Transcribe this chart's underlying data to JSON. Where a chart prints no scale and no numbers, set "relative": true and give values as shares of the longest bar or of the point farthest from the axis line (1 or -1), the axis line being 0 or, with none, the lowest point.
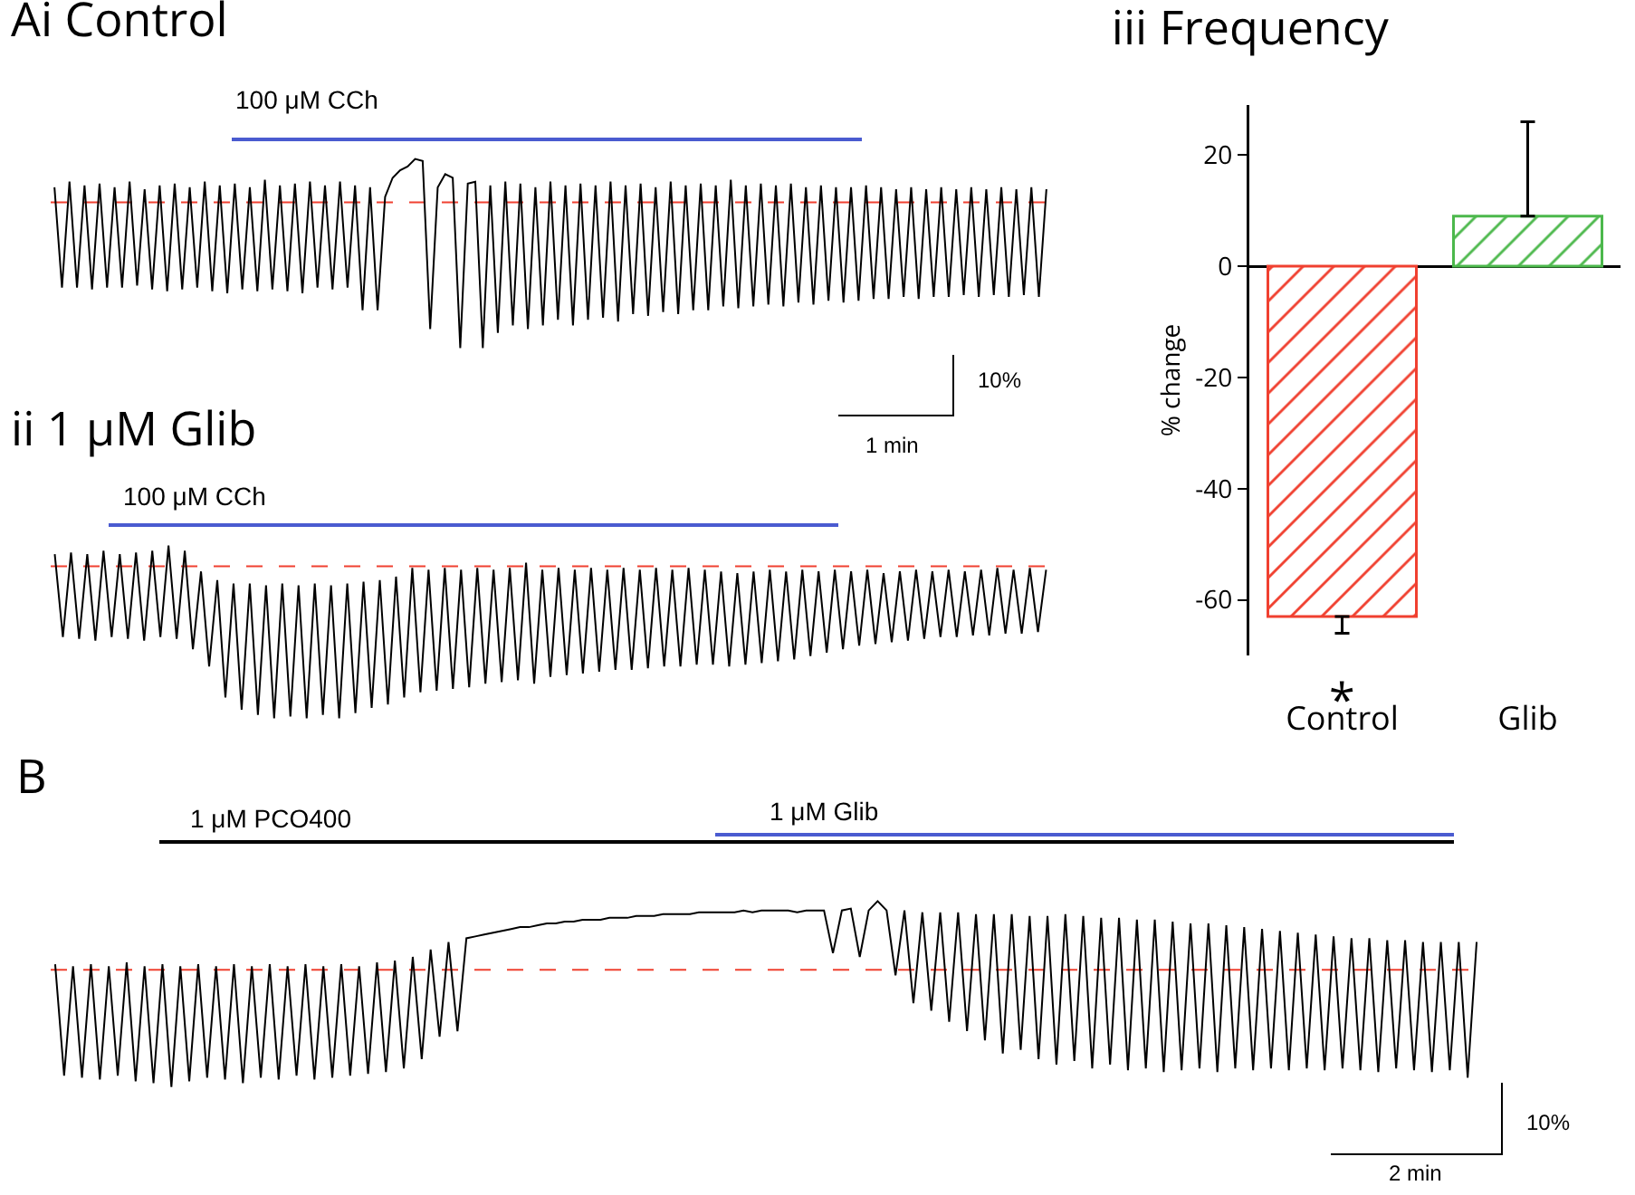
{
  "chart_data": [
    {
      "type": "line",
      "title": "Ai Control",
      "relative": true,
      "categories": [
        null,
        null,
        null,
        null,
        null,
        null,
        null,
        null,
        null,
        null,
        null,
        null,
        null,
        null,
        null,
        null,
        null,
        null,
        null,
        null,
        null,
        null,
        null,
        null,
        null,
        null,
        null,
        null,
        null,
        null,
        null,
        null,
        null,
        null,
        null,
        null,
        null,
        null,
        null,
        null,
        null,
        null,
        null,
        null,
        null,
        null,
        null,
        null,
        null,
        null,
        null,
        null,
        null,
        null,
        null,
        null,
        null,
        null,
        null,
        null,
        null,
        null,
        null,
        null,
        null,
        null,
        null,
        null,
        null,
        null,
        null,
        null,
        null,
        null,
        null,
        null,
        null,
        null,
        null,
        null,
        null,
        null,
        null,
        null,
        null,
        null,
        null,
        null,
        null,
        null,
        null,
        null,
        null,
        null,
        null,
        null,
        null,
        null,
        null,
        null,
        null,
        null,
        null,
        null,
        null,
        null,
        null,
        null,
        null,
        null,
        null,
        null,
        null,
        null,
        null,
        null,
        null,
        null,
        null,
        null,
        null,
        null,
        null,
        null,
        null,
        null,
        null,
        null,
        null,
        null,
        null,
        null,
        null
      ],
      "series": [
        {
          "color": "#000000",
          "values": [
            0.85,
            0.32,
            0.88,
            0.32,
            0.86,
            0.31,
            0.87,
            0.32,
            0.85,
            0.32,
            0.88,
            0.33,
            0.84,
            0.31,
            0.86,
            0.3,
            0.87,
            0.31,
            0.85,
            0.32,
            0.88,
            0.3,
            0.86,
            0.29,
            0.87,
            0.31,
            0.85,
            0.3,
            0.89,
            0.31,
            0.86,
            0.3,
            0.87,
            0.29,
            0.88,
            0.32,
            0.86,
            0.31,
            0.88,
            0.32,
            0.86,
            0.2,
            0.85,
            0.2,
            0.8,
            0.9,
            0.94,
            0.96,
            1.0,
            0.99,
            0.1,
            0.85,
            0.92,
            0.9,
            0.0,
            0.87,
            0.88,
            0.0,
            0.86,
            0.08,
            0.88,
            0.12,
            0.87,
            0.1,
            0.85,
            0.12,
            0.88,
            0.15,
            0.86,
            0.12,
            0.87,
            0.15,
            0.86,
            0.16,
            0.88,
            0.14,
            0.86,
            0.18,
            0.87,
            0.17,
            0.85,
            0.19,
            0.88,
            0.18,
            0.86,
            0.2,
            0.87,
            0.2,
            0.86,
            0.22,
            0.89,
            0.21,
            0.86,
            0.22,
            0.87,
            0.23,
            0.86,
            0.22,
            0.87,
            0.24,
            0.85,
            0.23,
            0.86,
            0.25,
            0.85,
            0.24,
            0.85,
            0.25,
            0.86,
            0.26,
            0.85,
            0.26,
            0.84,
            0.27,
            0.85,
            0.26,
            0.84,
            0.27,
            0.85,
            0.27,
            0.84,
            0.28,
            0.85,
            0.27,
            0.84,
            0.28,
            0.85,
            0.27,
            0.84,
            0.28,
            0.85,
            0.27,
            0.84
          ]
        }
      ],
      "ref_lines": [
        {
          "axis": "y",
          "value": 0.77,
          "color": "#f04030",
          "line_style": "dashed"
        }
      ],
      "annotations": [
        "100 μM CCh",
        "10%",
        "1 min"
      ]
    },
    {
      "type": "line",
      "title": "ii 1 μM Glib",
      "relative": true,
      "categories": [
        null,
        null,
        null,
        null,
        null,
        null,
        null,
        null,
        null,
        null,
        null,
        null,
        null,
        null,
        null,
        null,
        null,
        null,
        null,
        null,
        null,
        null,
        null,
        null,
        null,
        null,
        null,
        null,
        null,
        null,
        null,
        null,
        null,
        null,
        null,
        null,
        null,
        null,
        null,
        null,
        null,
        null,
        null,
        null,
        null,
        null,
        null,
        null,
        null,
        null,
        null,
        null,
        null,
        null,
        null,
        null,
        null,
        null,
        null,
        null,
        null,
        null,
        null,
        null,
        null,
        null,
        null,
        null,
        null,
        null,
        null,
        null,
        null,
        null,
        null,
        null,
        null,
        null,
        null,
        null,
        null,
        null,
        null,
        null,
        null,
        null,
        null,
        null,
        null,
        null,
        null,
        null,
        null,
        null,
        null,
        null,
        null,
        null,
        null,
        null,
        null,
        null,
        null,
        null,
        null,
        null,
        null,
        null,
        null,
        null,
        null,
        null,
        null,
        null,
        null,
        null,
        null,
        null,
        null,
        null,
        null,
        null,
        null
      ],
      "series": [
        {
          "color": "#000000",
          "values": [
            0.95,
            0.47,
            0.96,
            0.46,
            0.95,
            0.45,
            0.97,
            0.47,
            0.95,
            0.46,
            0.96,
            0.45,
            0.97,
            0.47,
            1.0,
            0.46,
            0.97,
            0.4,
            0.85,
            0.3,
            0.8,
            0.12,
            0.78,
            0.05,
            0.78,
            0.02,
            0.77,
            0.0,
            0.78,
            0.01,
            0.77,
            0.0,
            0.78,
            0.02,
            0.77,
            0.0,
            0.78,
            0.03,
            0.79,
            0.06,
            0.8,
            0.08,
            0.82,
            0.12,
            0.87,
            0.15,
            0.86,
            0.16,
            0.87,
            0.17,
            0.86,
            0.18,
            0.87,
            0.2,
            0.86,
            0.21,
            0.87,
            0.22,
            0.9,
            0.2,
            0.86,
            0.24,
            0.87,
            0.25,
            0.86,
            0.26,
            0.87,
            0.27,
            0.86,
            0.28,
            0.87,
            0.28,
            0.86,
            0.29,
            0.87,
            0.3,
            0.86,
            0.3,
            0.87,
            0.31,
            0.86,
            0.31,
            0.85,
            0.3,
            0.84,
            0.31,
            0.85,
            0.32,
            0.86,
            0.33,
            0.85,
            0.34,
            0.86,
            0.36,
            0.85,
            0.38,
            0.86,
            0.4,
            0.85,
            0.42,
            0.86,
            0.43,
            0.84,
            0.44,
            0.85,
            0.45,
            0.86,
            0.46,
            0.85,
            0.47,
            0.86,
            0.47,
            0.85,
            0.48,
            0.86,
            0.48,
            0.87,
            0.49,
            0.86,
            0.49,
            0.87,
            0.5,
            0.86
          ]
        }
      ],
      "ref_lines": [
        {
          "axis": "y",
          "value": 0.88,
          "color": "#f04030",
          "line_style": "dashed"
        }
      ],
      "annotations": [
        "100 μM CCh"
      ]
    },
    {
      "type": "bar",
      "title": "iii Frequency",
      "ylabel": "% change",
      "categories": [
        "Control",
        "Glib"
      ],
      "values": [
        -63,
        9
      ],
      "colors": [
        "#f04030",
        "#4cb84c"
      ],
      "errors": [
        [
          -66,
          -63
        ],
        [
          9,
          26
        ]
      ],
      "ylim": [
        -70,
        29
      ],
      "yticks": [
        20,
        0,
        -20,
        -40,
        -60
      ],
      "annotations": [
        "*"
      ]
    },
    {
      "type": "line",
      "title": "B",
      "relative": true,
      "categories": [
        null,
        null,
        null,
        null,
        null,
        null,
        null,
        null,
        null,
        null,
        null,
        null,
        null,
        null,
        null,
        null,
        null,
        null,
        null,
        null,
        null,
        null,
        null,
        null,
        null,
        null,
        null,
        null,
        null,
        null,
        null,
        null,
        null,
        null,
        null,
        null,
        null,
        null,
        null,
        null,
        null,
        null,
        null,
        null,
        null,
        null,
        null,
        null,
        null,
        null,
        null,
        null,
        null,
        null,
        null,
        null,
        null,
        null,
        null,
        null,
        null,
        null,
        null,
        null,
        null,
        null,
        null,
        null,
        null,
        null,
        null,
        null,
        null,
        null,
        null,
        null,
        null,
        null,
        null,
        null,
        null,
        null,
        null,
        null,
        null,
        null,
        null,
        null,
        null,
        null,
        null,
        null,
        null,
        null,
        null,
        null,
        null,
        null,
        null,
        null,
        null,
        null,
        null,
        null,
        null,
        null,
        null,
        null,
        null,
        null,
        null,
        null,
        null,
        null,
        null,
        null,
        null,
        null,
        null,
        null,
        null,
        null,
        null,
        null,
        null,
        null,
        null,
        null,
        null,
        null,
        null,
        null,
        null,
        null,
        null,
        null,
        null,
        null,
        null,
        null,
        null,
        null,
        null,
        null,
        null,
        null,
        null,
        null,
        null,
        null,
        null,
        null,
        null,
        null,
        null,
        null,
        null,
        null,
        null,
        null
      ],
      "series": [
        {
          "color": "#000000",
          "values": [
            0.66,
            0.06,
            0.65,
            0.05,
            0.66,
            0.04,
            0.65,
            0.06,
            0.67,
            0.03,
            0.65,
            0.02,
            0.66,
            0.0,
            0.65,
            0.03,
            0.66,
            0.05,
            0.65,
            0.04,
            0.66,
            0.02,
            0.65,
            0.05,
            0.66,
            0.04,
            0.65,
            0.06,
            0.66,
            0.04,
            0.65,
            0.05,
            0.66,
            0.06,
            0.65,
            0.07,
            0.67,
            0.08,
            0.68,
            0.1,
            0.7,
            0.15,
            0.74,
            0.27,
            0.78,
            0.3,
            0.8,
            0.81,
            0.82,
            0.83,
            0.84,
            0.85,
            0.86,
            0.86,
            0.87,
            0.88,
            0.88,
            0.89,
            0.89,
            0.9,
            0.9,
            0.9,
            0.91,
            0.91,
            0.91,
            0.92,
            0.92,
            0.92,
            0.93,
            0.93,
            0.93,
            0.93,
            0.94,
            0.94,
            0.94,
            0.94,
            0.94,
            0.95,
            0.94,
            0.95,
            0.95,
            0.95,
            0.95,
            0.94,
            0.95,
            0.95,
            0.95,
            0.72,
            0.95,
            0.96,
            0.7,
            0.95,
            1.0,
            0.95,
            0.6,
            0.95,
            0.45,
            0.94,
            0.41,
            0.94,
            0.35,
            0.94,
            0.3,
            0.93,
            0.25,
            0.93,
            0.18,
            0.93,
            0.2,
            0.92,
            0.15,
            0.92,
            0.12,
            0.93,
            0.14,
            0.92,
            0.1,
            0.91,
            0.12,
            0.91,
            0.09,
            0.9,
            0.1,
            0.9,
            0.08,
            0.89,
            0.09,
            0.88,
            0.1,
            0.88,
            0.08,
            0.87,
            0.1,
            0.86,
            0.09,
            0.85,
            0.1,
            0.84,
            0.09,
            0.83,
            0.1,
            0.82,
            0.09,
            0.81,
            0.1,
            0.8,
            0.09,
            0.8,
            0.08,
            0.79,
            0.1,
            0.79,
            0.09,
            0.78,
            0.08,
            0.78,
            0.09,
            0.78,
            0.05,
            0.78
          ]
        }
      ],
      "ref_lines": [
        {
          "axis": "y",
          "value": 0.63,
          "color": "#f04030",
          "line_style": "dashed"
        }
      ],
      "annotations": [
        "1 μM PCO400",
        "1 μM Glib",
        "10%",
        "2 min"
      ]
    }
  ]
}
